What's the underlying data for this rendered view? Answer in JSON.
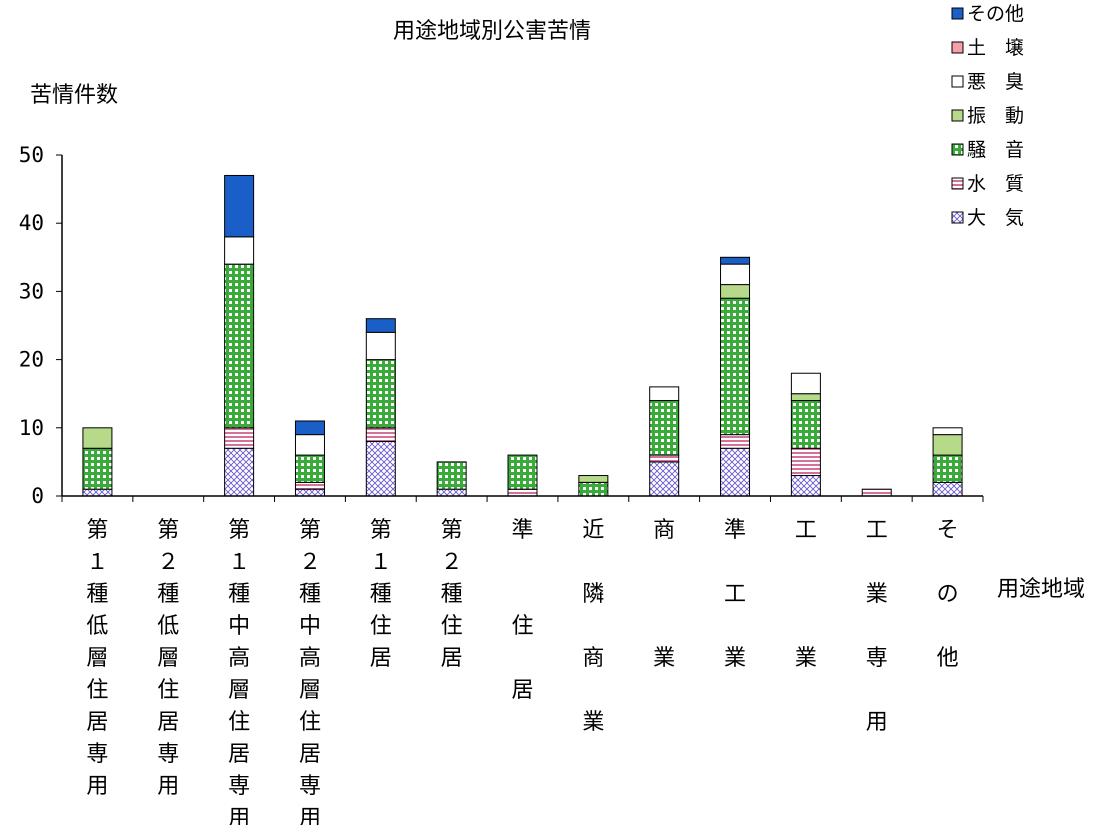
{
  "chart_data": {
    "type": "bar",
    "stacked": true,
    "title": "用途地域別公害苦情",
    "ylabel": "苦情件数",
    "xlabel": "用途地域",
    "ylim": [
      0,
      50
    ],
    "yticks": [
      "0",
      "10",
      "20",
      "30",
      "40",
      "50"
    ],
    "grid": false,
    "legend_position": "top-right",
    "categories": [
      "第１種低層住居専用",
      "第２種低層住居専用",
      "第１種中高層住居専用",
      "第２種中高層住居専用",
      "第１種住居",
      "第２種住居",
      "準住居",
      "近隣商業",
      "商業",
      "準工業",
      "工業",
      "工業専用",
      "その他"
    ],
    "category_lines": [
      [
        "第",
        "１",
        "種",
        "低",
        "層",
        "住",
        "居",
        "専",
        "用"
      ],
      [
        "第",
        "２",
        "種",
        "低",
        "層",
        "住",
        "居",
        "専",
        "用"
      ],
      [
        "第",
        "１",
        "種",
        "中",
        "高",
        "層",
        "住",
        "居",
        "専",
        "用"
      ],
      [
        "第",
        "２",
        "種",
        "中",
        "高",
        "層",
        "住",
        "居",
        "専",
        "用"
      ],
      [
        "第",
        "１",
        "種",
        "住",
        "居"
      ],
      [
        "第",
        "２",
        "種",
        "住",
        "居"
      ],
      [
        "準",
        "",
        "",
        "住",
        "",
        "居"
      ],
      [
        "近",
        "",
        "隣",
        "",
        "商",
        "",
        "業"
      ],
      [
        "商",
        "",
        "",
        "",
        "業"
      ],
      [
        "準",
        "",
        "工",
        "",
        "業"
      ],
      [
        "工",
        "",
        "",
        "",
        "業"
      ],
      [
        "工",
        "",
        "業",
        "",
        "専",
        "",
        "用"
      ],
      [
        "そ",
        "",
        "の",
        "",
        "他"
      ]
    ],
    "series": [
      {
        "name": "大　気",
        "pattern": "crosshatch",
        "color": "#6a5acd",
        "values": [
          1,
          0,
          7,
          1,
          8,
          1,
          0,
          0,
          5,
          7,
          3,
          0,
          2
        ]
      },
      {
        "name": "水　質",
        "pattern": "hstripe",
        "color": "#d4709a",
        "values": [
          0,
          0,
          3,
          1,
          2,
          0,
          1,
          0,
          1,
          2,
          4,
          1,
          0
        ]
      },
      {
        "name": "騒　音",
        "pattern": "grid",
        "color": "#3aaa3a",
        "values": [
          6,
          0,
          24,
          4,
          10,
          4,
          5,
          2,
          8,
          20,
          7,
          0,
          4
        ]
      },
      {
        "name": "振　動",
        "pattern": "solid",
        "color": "#b6d98a",
        "values": [
          3,
          0,
          0,
          0,
          0,
          0,
          0,
          1,
          0,
          2,
          1,
          0,
          3
        ]
      },
      {
        "name": "悪　臭",
        "pattern": "solid",
        "color": "#ffffff",
        "values": [
          0,
          0,
          4,
          3,
          4,
          0,
          0,
          0,
          2,
          3,
          3,
          0,
          1
        ]
      },
      {
        "name": "土　壌",
        "pattern": "solid",
        "color": "#f4a0a8",
        "values": [
          0,
          0,
          0,
          0,
          0,
          0,
          0,
          0,
          0,
          0,
          0,
          0,
          0
        ]
      },
      {
        "name": "その他",
        "pattern": "solid",
        "color": "#1a5fc8",
        "values": [
          0,
          0,
          9,
          2,
          2,
          0,
          0,
          0,
          0,
          1,
          0,
          0,
          0
        ]
      }
    ],
    "legend_order": [
      "その他",
      "土　壌",
      "悪　臭",
      "振　動",
      "騒　音",
      "水　質",
      "大　気"
    ]
  }
}
